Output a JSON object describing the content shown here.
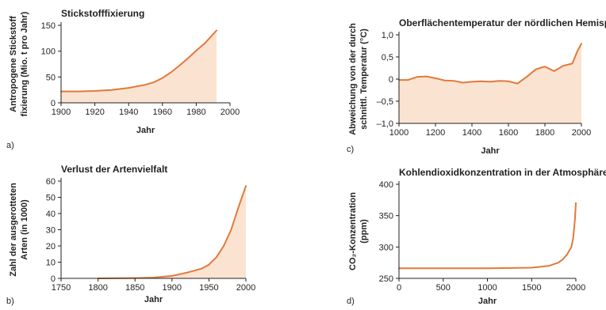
{
  "accent": "#e2793a",
  "fill": "#fbe3d1",
  "chart_data": [
    {
      "panel": "a)",
      "type": "area",
      "title": "Stickstofffixierung",
      "xlabel": "Jahr",
      "ylabel_lines": [
        "Antropogene Stickstoff",
        "fixierung (Mio. t pro Jahr)"
      ],
      "xlim": [
        1900,
        2000
      ],
      "ylim": [
        0,
        150
      ],
      "xticks": [
        1900,
        1920,
        1940,
        1960,
        1980,
        2000
      ],
      "yticks": [
        0,
        50,
        100,
        150
      ],
      "ytick_labels": [
        "0",
        "50",
        "100",
        "150"
      ],
      "x": [
        1900,
        1910,
        1920,
        1930,
        1940,
        1950,
        1955,
        1960,
        1965,
        1970,
        1975,
        1980,
        1985,
        1992
      ],
      "y": [
        22,
        22,
        23,
        25,
        29,
        35,
        40,
        48,
        59,
        72,
        86,
        101,
        115,
        140
      ]
    },
    {
      "panel": "b)",
      "type": "area",
      "title": "Verlust der Artenvielfalt",
      "xlabel": "Jahr",
      "ylabel_lines": [
        "Zahl der ausgerotteten",
        "Arten (in 1000)"
      ],
      "xlim": [
        1750,
        2000
      ],
      "ylim": [
        0,
        60
      ],
      "xticks": [
        1750,
        1800,
        1850,
        1900,
        1950,
        2000
      ],
      "yticks": [
        0,
        10,
        20,
        30,
        40,
        50,
        60
      ],
      "ytick_labels": [
        "0",
        "10",
        "20",
        "30",
        "40",
        "50",
        "60"
      ],
      "x": [
        1800,
        1850,
        1875,
        1900,
        1920,
        1940,
        1950,
        1960,
        1970,
        1980,
        1990,
        2000
      ],
      "y": [
        0,
        0.2,
        0.5,
        1.5,
        3.5,
        6,
        8.5,
        13,
        20,
        30,
        44,
        57
      ]
    },
    {
      "panel": "c)",
      "type": "area",
      "title": "Oberflächentemperatur der nördlichen Hemisphäre",
      "xlabel": "Jahr",
      "ylabel_lines": [
        "Abweichung von der durch",
        "schnittl. Temperatur (°C)"
      ],
      "xlim": [
        1000,
        2000
      ],
      "ylim": [
        -1.0,
        1.0
      ],
      "xticks": [
        1000,
        1200,
        1400,
        1600,
        1800,
        2000
      ],
      "yticks": [
        -1.0,
        -0.5,
        0,
        0.5,
        1.0
      ],
      "ytick_labels": [
        "–1,0",
        "–0,5",
        "0",
        "0,5",
        "1,0"
      ],
      "x": [
        1000,
        1050,
        1100,
        1150,
        1200,
        1250,
        1300,
        1350,
        1400,
        1450,
        1500,
        1550,
        1600,
        1650,
        1700,
        1750,
        1780,
        1800,
        1850,
        1880,
        1900,
        1950,
        1980,
        2000
      ],
      "y": [
        -0.02,
        -0.02,
        0.05,
        0.06,
        0.02,
        -0.03,
        -0.04,
        -0.08,
        -0.06,
        -0.05,
        -0.06,
        -0.04,
        -0.05,
        -0.1,
        0.05,
        0.22,
        0.26,
        0.28,
        0.18,
        0.25,
        0.3,
        0.35,
        0.65,
        0.8
      ]
    },
    {
      "panel": "d)",
      "type": "line",
      "title": "Kohlendioxidkonzentration in der Atmosphäre",
      "xlabel": "Jahr",
      "ylabel_lines": [
        "CO₂-Konzentration",
        "(ppm)"
      ],
      "xlim": [
        0,
        2000
      ],
      "ylim": [
        250,
        400
      ],
      "xticks": [
        0,
        500,
        1000,
        1500,
        2000
      ],
      "yticks": [
        250,
        300,
        350,
        400
      ],
      "ytick_labels": [
        "250",
        "300",
        "350",
        "400"
      ],
      "x": [
        0,
        500,
        1000,
        1500,
        1700,
        1800,
        1850,
        1900,
        1950,
        1970,
        1990,
        2000
      ],
      "y": [
        266,
        266,
        266,
        267,
        270,
        275,
        280,
        288,
        300,
        315,
        345,
        370
      ]
    }
  ]
}
